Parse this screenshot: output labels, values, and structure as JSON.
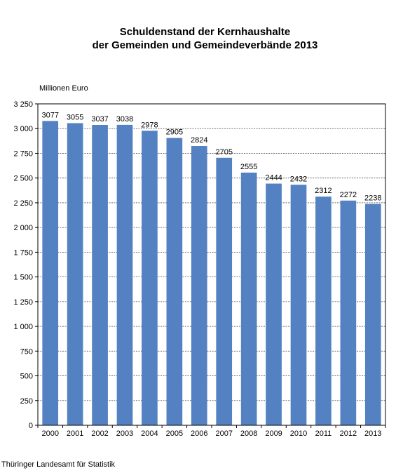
{
  "source": "Thüringer Landesamt für Statistik",
  "chart_data": {
    "type": "bar",
    "title_lines": [
      "Schuldenstand der Kernhaushalte",
      "der Gemeinden und Gemeindeverbände 2013"
    ],
    "ylabel": "Millionen Euro",
    "xlabel": "",
    "categories": [
      "2000",
      "2001",
      "2002",
      "2003",
      "2004",
      "2005",
      "2006",
      "2007",
      "2008",
      "2009",
      "2010",
      "2011",
      "2012",
      "2013"
    ],
    "values": [
      3077,
      3055,
      3037,
      3038,
      2978,
      2905,
      2824,
      2705,
      2555,
      2444,
      2432,
      2312,
      2272,
      2238
    ],
    "data_labels": [
      "3077",
      "3055",
      "3037",
      "3038",
      "2978",
      "2905",
      "2824",
      "2705",
      "2555",
      "2444",
      "2432",
      "2312",
      "2272",
      "2238"
    ],
    "ylim": [
      0,
      3250
    ],
    "yticks": [
      0,
      250,
      500,
      750,
      1000,
      1250,
      1500,
      1750,
      2000,
      2250,
      2500,
      2750,
      3000,
      3250
    ],
    "ytick_labels": [
      "0",
      "250",
      "500",
      "750",
      "1 000",
      "1 250",
      "1 500",
      "1 750",
      "2 000",
      "2 250",
      "2 500",
      "2 750",
      "3 000",
      "3 250"
    ],
    "bar_color": "#5481c1",
    "grid": "horizontal dashed",
    "legend": "none"
  }
}
